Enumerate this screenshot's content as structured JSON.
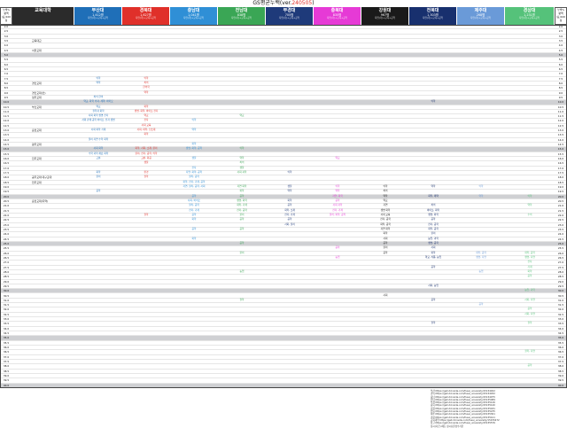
{
  "title": {
    "main": "GS평균누백(ver.",
    "version": "240505",
    "close": ")"
  },
  "scale_header": {
    "top": "누백%",
    "mid": "평백",
    "bottom": "(표)100점"
  },
  "columns": [
    {
      "name": "교육대학",
      "count": "",
      "sub": "",
      "color": "#2b2b2b"
    },
    {
      "name": "부산대",
      "count": "1,412명",
      "sub": "자연(가)+교육+공학",
      "color": "#1f6fb8"
    },
    {
      "name": "경북대",
      "count": "1,627명",
      "sub": "자연(가)+교육+공학",
      "color": "#e0302a"
    },
    {
      "name": "충남대",
      "count": "1,041명",
      "sub": "자연(가)+교육+공학",
      "color": "#2f8fd6"
    },
    {
      "name": "전남대",
      "count": "838명",
      "sub": "자연(가)+교육+공학",
      "color": "#3aa655"
    },
    {
      "name": "부경대",
      "count": "705명",
      "sub": "자연(가)+교육+공학",
      "color": "#1e3a7a"
    },
    {
      "name": "충북대",
      "count": "835명",
      "sub": "자연(가)+교육+공학",
      "color": "#e63ad6"
    },
    {
      "name": "강원대",
      "count": "967명",
      "sub": "자연(가)+교육+공학",
      "color": "#1a1a1a"
    },
    {
      "name": "전북대",
      "count": "1,303명",
      "sub": "자연(가)+교육+공학",
      "color": "#18306e"
    },
    {
      "name": "제주대",
      "count": "268명",
      "sub": "자연(가)+교육+공학",
      "color": "#6a9ad8"
    },
    {
      "name": "경상대",
      "count": "1,231명",
      "sub": "자연(가)+교육+공학",
      "color": "#55c27a"
    }
  ],
  "scale_values": [
    "2.0",
    "2.5",
    "3.0",
    "3.5",
    "4.0",
    "4.5",
    "5.0",
    "5.5",
    "6.0",
    "6.5",
    "7.0",
    "7.5",
    "8.0",
    "8.5",
    "9.0",
    "9.5",
    "10.0",
    "10.5",
    "11.0",
    "11.5",
    "12.0",
    "12.5",
    "13.0",
    "13.5",
    "14.0",
    "14.5",
    "15.0",
    "15.5",
    "16.0",
    "16.5",
    "17.0",
    "17.5",
    "18.0",
    "18.5",
    "19.0",
    "19.5",
    "20.0",
    "20.5",
    "21.0",
    "21.5",
    "22.0",
    "22.5",
    "23.0",
    "23.5",
    "24.0",
    "24.5",
    "25.0",
    "25.5",
    "26.0",
    "26.5",
    "27.0",
    "27.5",
    "28.0",
    "28.5",
    "29.0",
    "29.5",
    "30.0",
    "30.5",
    "31.0",
    "31.5",
    "32.0",
    "32.5",
    "33.0",
    "33.5",
    "34.0",
    "34.5",
    "35.0",
    "35.5",
    "36.0",
    "36.5",
    "37.0",
    "37.5",
    "38.0",
    "38.5",
    "39.0",
    "39.5",
    "40.0"
  ],
  "row_labels": [
    {
      "row": 3,
      "text": "교육대교"
    },
    {
      "row": 5,
      "text": "서울교대"
    },
    {
      "row": 12,
      "text": "경인교대"
    },
    {
      "row": 14,
      "text": "경인교대(인)"
    },
    {
      "row": 15,
      "text": "청주교대"
    },
    {
      "row": 17,
      "text": "부산교대"
    },
    {
      "row": 22,
      "text": "춘천교대"
    },
    {
      "row": 25,
      "text": "광주교대"
    },
    {
      "row": 28,
      "text": "진주교대"
    },
    {
      "row": 32,
      "text": "공주교대·대구교대"
    },
    {
      "row": 33,
      "text": "전주교대"
    },
    {
      "row": 37,
      "text": "춘천교대(지역)"
    }
  ],
  "entries": [
    {
      "col": 1,
      "row": 11,
      "text": "의학"
    },
    {
      "col": 1,
      "row": 12,
      "text": "약학"
    },
    {
      "col": 1,
      "row": 15,
      "text": "치의 한의"
    },
    {
      "col": 1,
      "row": 16,
      "text": "약교, 화학 의과, 제약, 바이오"
    },
    {
      "col": 1,
      "row": 17,
      "text": "약교"
    },
    {
      "col": 1,
      "row": 18,
      "text": "철학과 화학"
    },
    {
      "col": 1,
      "row": 19,
      "text": "사회 화학 생명 전자"
    },
    {
      "col": 1,
      "row": 20,
      "text": "사회 관계 공학 바이오, 전자 생명"
    },
    {
      "col": 1,
      "row": 22,
      "text": "사회 화학 기계"
    },
    {
      "col": 1,
      "row": 24,
      "text": "물리 자연 수학 화학"
    },
    {
      "col": 1,
      "row": 26,
      "text": "사회 화학"
    },
    {
      "col": 1,
      "row": 27,
      "text": "수학 과학 재료 화학"
    },
    {
      "col": 1,
      "row": 28,
      "text": "고분"
    },
    {
      "col": 1,
      "row": 31,
      "text": "화학"
    },
    {
      "col": 1,
      "row": 32,
      "text": "물리"
    },
    {
      "col": 1,
      "row": 35,
      "text": "공학"
    },
    {
      "col": 2,
      "row": 11,
      "text": "의학"
    },
    {
      "col": 2,
      "row": 12,
      "text": "치의"
    },
    {
      "col": 2,
      "row": 13,
      "text": "한의학"
    },
    {
      "col": 2,
      "row": 14,
      "text": "약학"
    },
    {
      "col": 2,
      "row": 17,
      "text": "화학"
    },
    {
      "col": 2,
      "row": 18,
      "text": "생명, 화학, 바이오 전자"
    },
    {
      "col": 2,
      "row": 19,
      "text": "약교"
    },
    {
      "col": 2,
      "row": 20,
      "text": "전자"
    },
    {
      "col": 2,
      "row": 21,
      "text": "사회 교육"
    },
    {
      "col": 2,
      "row": 22,
      "text": "사회, 화학, 신소재"
    },
    {
      "col": 2,
      "row": 23,
      "text": "화학"
    },
    {
      "col": 2,
      "row": 26,
      "text": "화학, 사회, 소재, 물리"
    },
    {
      "col": 2,
      "row": 27,
      "text": "물리, 전자, 공학, 의학"
    },
    {
      "col": 2,
      "row": 28,
      "text": "고분, 화공"
    },
    {
      "col": 2,
      "row": 29,
      "text": "생물"
    },
    {
      "col": 2,
      "row": 31,
      "text": "환경"
    },
    {
      "col": 2,
      "row": 32,
      "text": "철학"
    },
    {
      "col": 2,
      "row": 40,
      "text": "철학"
    },
    {
      "col": 3,
      "row": 20,
      "text": "의학"
    },
    {
      "col": 3,
      "row": 22,
      "text": "약학"
    },
    {
      "col": 3,
      "row": 25,
      "text": "화학"
    },
    {
      "col": 3,
      "row": 26,
      "text": "생명, 화학, 공학"
    },
    {
      "col": 3,
      "row": 28,
      "text": "생물"
    },
    {
      "col": 3,
      "row": 30,
      "text": "전자"
    },
    {
      "col": 3,
      "row": 31,
      "text": "자연, 화학, 공학"
    },
    {
      "col": 3,
      "row": 32,
      "text": "물리, 공학"
    },
    {
      "col": 3,
      "row": 33,
      "text": "화학, 전자, 기계, 공학"
    },
    {
      "col": 3,
      "row": 34,
      "text": "자연, 물리, 공학, 사회"
    },
    {
      "col": 3,
      "row": 36,
      "text": "공학"
    },
    {
      "col": 3,
      "row": 37,
      "text": "사회, 바이오"
    },
    {
      "col": 3,
      "row": 38,
      "text": "물리, 공학"
    },
    {
      "col": 3,
      "row": 39,
      "text": "전자, 기계"
    },
    {
      "col": 3,
      "row": 40,
      "text": "공학"
    },
    {
      "col": 3,
      "row": 41,
      "text": "화학"
    },
    {
      "col": 3,
      "row": 43,
      "text": "공학"
    },
    {
      "col": 3,
      "row": 45,
      "text": "화학"
    },
    {
      "col": 4,
      "row": 19,
      "text": "약교"
    },
    {
      "col": 4,
      "row": 26,
      "text": "의학"
    },
    {
      "col": 4,
      "row": 28,
      "text": "약학"
    },
    {
      "col": 4,
      "row": 29,
      "text": "치의"
    },
    {
      "col": 4,
      "row": 30,
      "text": "생물"
    },
    {
      "col": 4,
      "row": 31,
      "text": "사회 과학"
    },
    {
      "col": 4,
      "row": 34,
      "text": "자연 화학"
    },
    {
      "col": 4,
      "row": 35,
      "text": "화학"
    },
    {
      "col": 4,
      "row": 36,
      "text": "공학"
    },
    {
      "col": 4,
      "row": 37,
      "text": "생명, 화학"
    },
    {
      "col": 4,
      "row": 38,
      "text": "화학, 기계"
    },
    {
      "col": 4,
      "row": 39,
      "text": "전자, 공학"
    },
    {
      "col": 4,
      "row": 40,
      "text": "물리"
    },
    {
      "col": 4,
      "row": 41,
      "text": "공학"
    },
    {
      "col": 4,
      "row": 43,
      "text": "공학"
    },
    {
      "col": 4,
      "row": 46,
      "text": "공학"
    },
    {
      "col": 4,
      "row": 48,
      "text": "물리"
    },
    {
      "col": 4,
      "row": 52,
      "text": "농업"
    },
    {
      "col": 4,
      "row": 58,
      "text": "철학"
    },
    {
      "col": 5,
      "row": 31,
      "text": "의학"
    },
    {
      "col": 5,
      "row": 34,
      "text": "생물"
    },
    {
      "col": 5,
      "row": 35,
      "text": "약학"
    },
    {
      "col": 5,
      "row": 37,
      "text": "화학"
    },
    {
      "col": 5,
      "row": 38,
      "text": "공학"
    },
    {
      "col": 5,
      "row": 39,
      "text": "화학, 소재"
    },
    {
      "col": 5,
      "row": 40,
      "text": "전자, 기계"
    },
    {
      "col": 5,
      "row": 41,
      "text": "공학"
    },
    {
      "col": 5,
      "row": 42,
      "text": "사회, 물리"
    },
    {
      "col": 6,
      "row": 28,
      "text": "약교"
    },
    {
      "col": 6,
      "row": 34,
      "text": "의학"
    },
    {
      "col": 6,
      "row": 35,
      "text": "약학"
    },
    {
      "col": 6,
      "row": 36,
      "text": "자연, 화학"
    },
    {
      "col": 6,
      "row": 37,
      "text": "공학"
    },
    {
      "col": 6,
      "row": 38,
      "text": "사회 과학"
    },
    {
      "col": 6,
      "row": 39,
      "text": "전자, 기계"
    },
    {
      "col": 6,
      "row": 40,
      "text": "물리, 화학, 공학"
    },
    {
      "col": 6,
      "row": 47,
      "text": "공학"
    },
    {
      "col": 6,
      "row": 49,
      "text": "농업"
    },
    {
      "col": 7,
      "row": 34,
      "text": "의학"
    },
    {
      "col": 7,
      "row": 35,
      "text": "치의"
    },
    {
      "col": 7,
      "row": 36,
      "text": "약학"
    },
    {
      "col": 7,
      "row": 37,
      "text": "약교"
    },
    {
      "col": 7,
      "row": 38,
      "text": "자연"
    },
    {
      "col": 7,
      "row": 39,
      "text": "생명 화학"
    },
    {
      "col": 7,
      "row": 40,
      "text": "사회 교육"
    },
    {
      "col": 7,
      "row": 41,
      "text": "전자, 공학"
    },
    {
      "col": 7,
      "row": 42,
      "text": "화학, 공학"
    },
    {
      "col": 7,
      "row": 43,
      "text": "자연 화학"
    },
    {
      "col": 7,
      "row": 44,
      "text": "화학"
    },
    {
      "col": 7,
      "row": 45,
      "text": "사회"
    },
    {
      "col": 7,
      "row": 46,
      "text": "공학"
    },
    {
      "col": 7,
      "row": 47,
      "text": "물리"
    },
    {
      "col": 7,
      "row": 48,
      "text": "공학"
    },
    {
      "col": 7,
      "row": 57,
      "text": "사회"
    },
    {
      "col": 8,
      "row": 16,
      "text": "의학"
    },
    {
      "col": 8,
      "row": 34,
      "text": "약학"
    },
    {
      "col": 8,
      "row": 36,
      "text": "화학, 제약"
    },
    {
      "col": 8,
      "row": 38,
      "text": "치의"
    },
    {
      "col": 8,
      "row": 39,
      "text": "바이오, 화학"
    },
    {
      "col": 8,
      "row": 40,
      "text": "생명, 화학"
    },
    {
      "col": 8,
      "row": 41,
      "text": "공학"
    },
    {
      "col": 8,
      "row": 42,
      "text": "전자, 공학"
    },
    {
      "col": 8,
      "row": 43,
      "text": "화학, 공학"
    },
    {
      "col": 8,
      "row": 44,
      "text": "물리"
    },
    {
      "col": 8,
      "row": 45,
      "text": "농업, 과학"
    },
    {
      "col": 8,
      "row": 46,
      "text": "생명, 공학"
    },
    {
      "col": 8,
      "row": 47,
      "text": "사회"
    },
    {
      "col": 8,
      "row": 48,
      "text": "화학"
    },
    {
      "col": 8,
      "row": 49,
      "text": "약교, 식품, 농업"
    },
    {
      "col": 8,
      "row": 51,
      "text": "공학"
    },
    {
      "col": 8,
      "row": 55,
      "text": "사회, 농업"
    },
    {
      "col": 8,
      "row": 58,
      "text": "공학"
    },
    {
      "col": 8,
      "row": 63,
      "text": "철학"
    },
    {
      "col": 9,
      "row": 34,
      "text": "의학"
    },
    {
      "col": 9,
      "row": 36,
      "text": "약학"
    },
    {
      "col": 9,
      "row": 48,
      "text": "화학, 공학"
    },
    {
      "col": 9,
      "row": 49,
      "text": "생명, 자연"
    },
    {
      "col": 9,
      "row": 52,
      "text": "농업"
    },
    {
      "col": 9,
      "row": 59,
      "text": "공학"
    },
    {
      "col": 10,
      "row": 36,
      "text": "의학"
    },
    {
      "col": 10,
      "row": 38,
      "text": "약학"
    },
    {
      "col": 10,
      "row": 40,
      "text": "수의"
    },
    {
      "col": 10,
      "row": 48,
      "text": "화학, 공학"
    },
    {
      "col": 10,
      "row": 49,
      "text": "생명, 자연"
    },
    {
      "col": 10,
      "row": 50,
      "text": "전자"
    },
    {
      "col": 10,
      "row": 51,
      "text": "기계"
    },
    {
      "col": 10,
      "row": 52,
      "text": "화학"
    },
    {
      "col": 10,
      "row": 53,
      "text": "공학"
    },
    {
      "col": 10,
      "row": 56,
      "text": "농업, 과학"
    },
    {
      "col": 10,
      "row": 58,
      "text": "사회, 자연"
    },
    {
      "col": 10,
      "row": 60,
      "text": "공학"
    },
    {
      "col": 10,
      "row": 61,
      "text": "사회, 자연"
    },
    {
      "col": 10,
      "row": 63,
      "text": "철학"
    },
    {
      "col": 10,
      "row": 69,
      "text": "철학, 자연"
    },
    {
      "col": 10,
      "row": 72,
      "text": "공학"
    }
  ],
  "notes": [
    "부산:https://gall.dcinside.com/fusai_university/15154922",
    "경북:https://gall.dcinside.com/fusai_university/15154932",
    "충남:https://gall.dcinside.com/fusai_university/15154975",
    "전남:https://gall.dcinside.com/fusai_university/15155089",
    "부경:https://gall.dcinside.com/fusai_university/15155126",
    "충북:https://gall.dcinside.com/fusai_university/15155140",
    "강원:https://gall.dcinside.com/fusai_university/15155181",
    "전북:https://gall.dcinside.com/fusai_university/15155235",
    "제주:https://gall.dcinside.com/fusai_university/15155301",
    "경상:https://gall.dcinside.com/fusai_university/15155411",
    "교육대학:https://gall.dcinside.com/fusai_university/15155472",
    "참고:https://gall.dcinside.com/fusai_university/15155576",
    "정시(다군)-에듀 정시표준점수기준"
  ]
}
